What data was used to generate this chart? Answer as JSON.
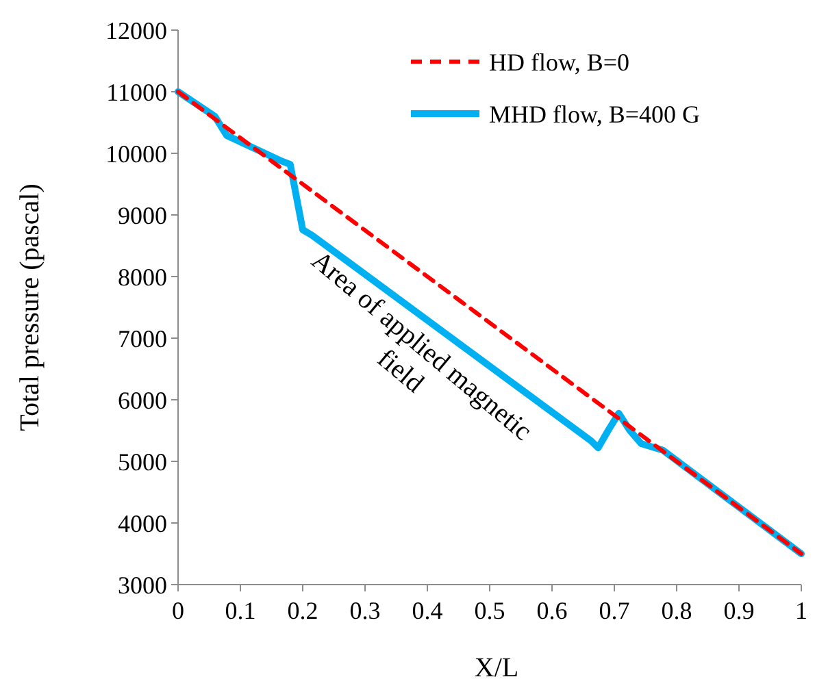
{
  "chart_data": {
    "type": "line",
    "xlabel": "X/L",
    "ylabel": "Total  pressure (pascal)",
    "xlim": [
      0,
      1
    ],
    "xticks": [
      0,
      0.1,
      0.2,
      0.3,
      0.4,
      0.5,
      0.6,
      0.7,
      0.8,
      0.9,
      1
    ],
    "ylim": [
      3000,
      12000
    ],
    "yticks": [
      3000,
      4000,
      5000,
      6000,
      7000,
      8000,
      9000,
      10000,
      11000,
      12000
    ],
    "grid": false,
    "legend": "top right",
    "marker": "none",
    "series": [
      {
        "name": "HD flow, B=0",
        "color": "#ff0000",
        "line_style": "dashed",
        "x": [
          0,
          1
        ],
        "values": [
          11000,
          3500
        ]
      },
      {
        "name": "MHD flow, B=400 G",
        "color": "#00b0f0",
        "line_style": "solid",
        "x": [
          0,
          0.059,
          0.078,
          0.167,
          0.18,
          0.2,
          0.215,
          0.663,
          0.674,
          0.69,
          0.707,
          0.725,
          0.743,
          0.778,
          1
        ],
        "values": [
          11000,
          10600,
          10290,
          9870,
          9820,
          8760,
          8670,
          5330,
          5220,
          5500,
          5780,
          5500,
          5290,
          5180,
          3500
        ]
      }
    ],
    "annotations": [
      "Area of applied magnetic field"
    ]
  }
}
